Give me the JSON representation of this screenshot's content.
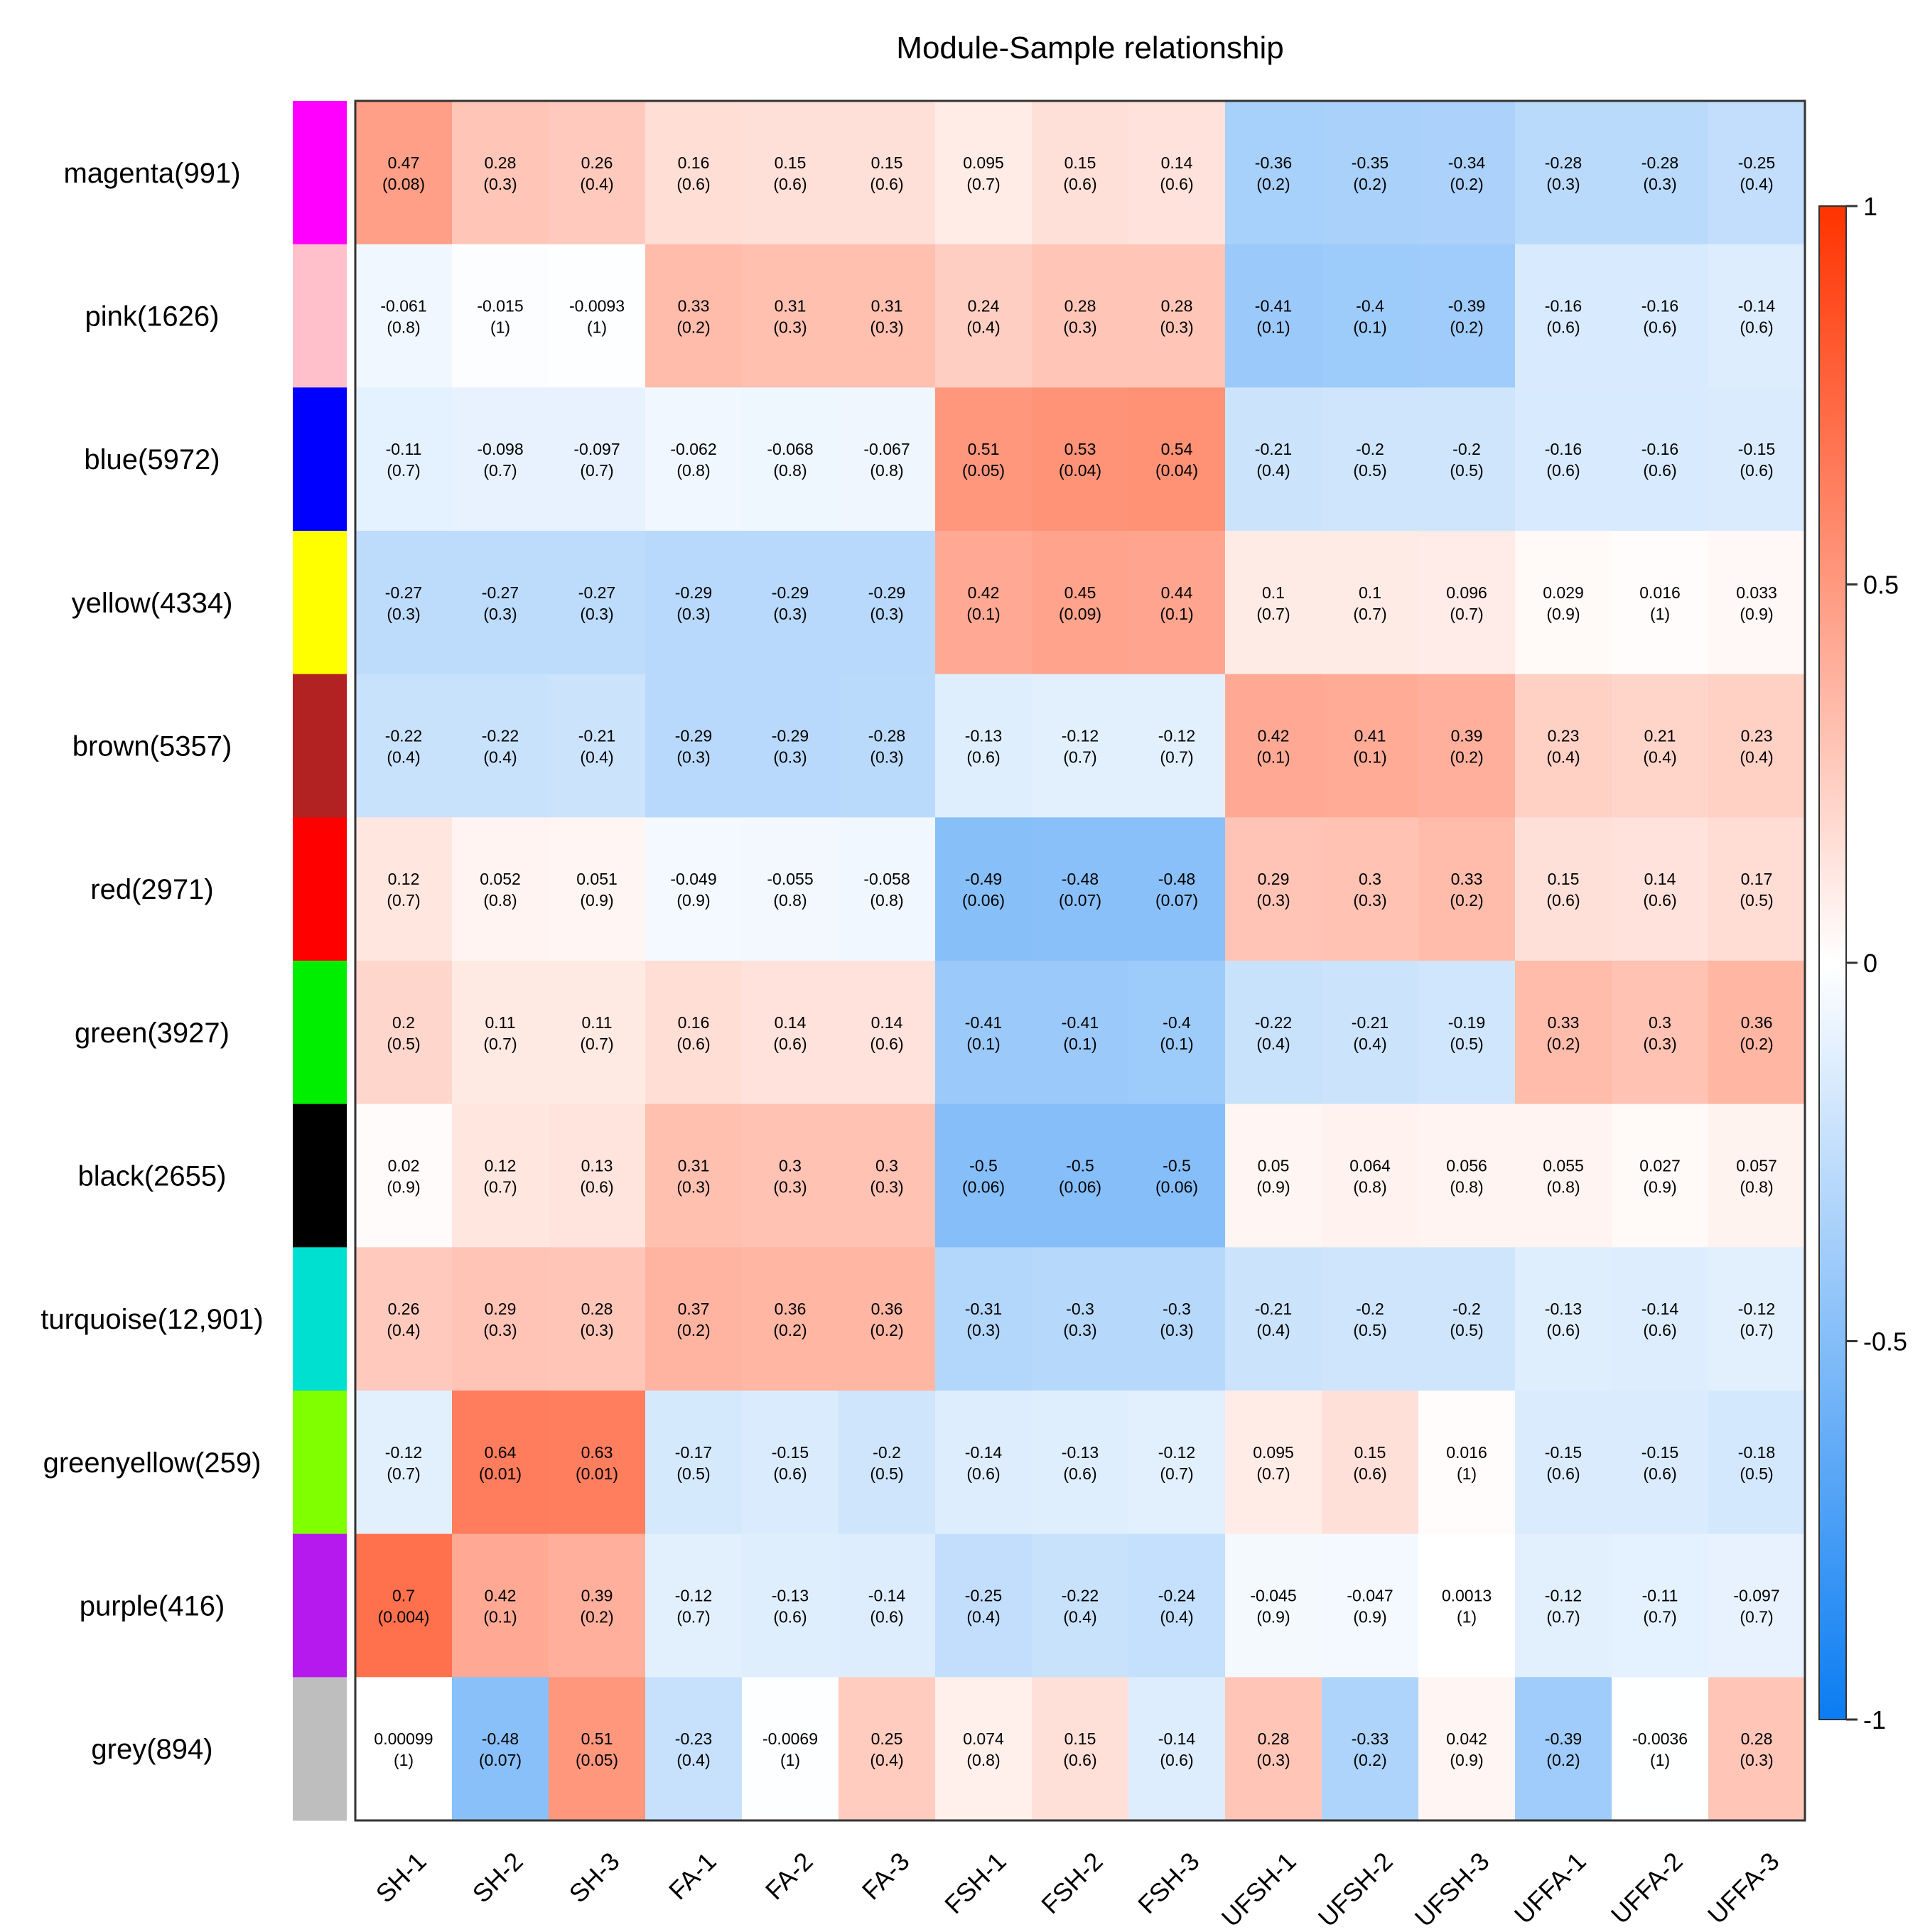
{
  "chart_data": {
    "type": "heatmap",
    "title": "Module-Sample relationship",
    "columns": [
      "SH-1",
      "SH-2",
      "SH-3",
      "FA-1",
      "FA-2",
      "FA-3",
      "FSH-1",
      "FSH-2",
      "FSH-3",
      "UFSH-1",
      "UFSH-2",
      "UFSH-3",
      "UFFA-1",
      "UFFA-2",
      "UFFA-3"
    ],
    "rows": [
      {
        "label": "magenta(991)",
        "color": "#FF00FF",
        "values": [
          "0.47",
          "0.28",
          "0.26",
          "0.16",
          "0.15",
          "0.15",
          "0.095",
          "0.15",
          "0.14",
          "-0.36",
          "-0.35",
          "-0.34",
          "-0.28",
          "-0.28",
          "-0.25"
        ],
        "pvalues": [
          "(0.08)",
          "(0.3)",
          "(0.4)",
          "(0.6)",
          "(0.6)",
          "(0.6)",
          "(0.7)",
          "(0.6)",
          "(0.6)",
          "(0.2)",
          "(0.2)",
          "(0.2)",
          "(0.3)",
          "(0.3)",
          "(0.4)"
        ]
      },
      {
        "label": "pink(1626)",
        "color": "#FFC0CB",
        "values": [
          "-0.061",
          "-0.015",
          "-0.0093",
          "0.33",
          "0.31",
          "0.31",
          "0.24",
          "0.28",
          "0.28",
          "-0.41",
          "-0.4",
          "-0.39",
          "-0.16",
          "-0.16",
          "-0.14"
        ],
        "pvalues": [
          "(0.8)",
          "(1)",
          "(1)",
          "(0.2)",
          "(0.3)",
          "(0.3)",
          "(0.4)",
          "(0.3)",
          "(0.3)",
          "(0.1)",
          "(0.1)",
          "(0.2)",
          "(0.6)",
          "(0.6)",
          "(0.6)"
        ]
      },
      {
        "label": "blue(5972)",
        "color": "#0000FF",
        "values": [
          "-0.11",
          "-0.098",
          "-0.097",
          "-0.062",
          "-0.068",
          "-0.067",
          "0.51",
          "0.53",
          "0.54",
          "-0.21",
          "-0.2",
          "-0.2",
          "-0.16",
          "-0.16",
          "-0.15"
        ],
        "pvalues": [
          "(0.7)",
          "(0.7)",
          "(0.7)",
          "(0.8)",
          "(0.8)",
          "(0.8)",
          "(0.05)",
          "(0.04)",
          "(0.04)",
          "(0.4)",
          "(0.5)",
          "(0.5)",
          "(0.6)",
          "(0.6)",
          "(0.6)"
        ]
      },
      {
        "label": "yellow(4334)",
        "color": "#FFFF00",
        "values": [
          "-0.27",
          "-0.27",
          "-0.27",
          "-0.29",
          "-0.29",
          "-0.29",
          "0.42",
          "0.45",
          "0.44",
          "0.1",
          "0.1",
          "0.096",
          "0.029",
          "0.016",
          "0.033"
        ],
        "pvalues": [
          "(0.3)",
          "(0.3)",
          "(0.3)",
          "(0.3)",
          "(0.3)",
          "(0.3)",
          "(0.1)",
          "(0.09)",
          "(0.1)",
          "(0.7)",
          "(0.7)",
          "(0.7)",
          "(0.9)",
          "(1)",
          "(0.9)"
        ]
      },
      {
        "label": "brown(5357)",
        "color": "#B22222",
        "values": [
          "-0.22",
          "-0.22",
          "-0.21",
          "-0.29",
          "-0.29",
          "-0.28",
          "-0.13",
          "-0.12",
          "-0.12",
          "0.42",
          "0.41",
          "0.39",
          "0.23",
          "0.21",
          "0.23"
        ],
        "pvalues": [
          "(0.4)",
          "(0.4)",
          "(0.4)",
          "(0.3)",
          "(0.3)",
          "(0.3)",
          "(0.6)",
          "(0.7)",
          "(0.7)",
          "(0.1)",
          "(0.1)",
          "(0.2)",
          "(0.4)",
          "(0.4)",
          "(0.4)"
        ]
      },
      {
        "label": "red(2971)",
        "color": "#FF0000",
        "values": [
          "0.12",
          "0.052",
          "0.051",
          "-0.049",
          "-0.055",
          "-0.058",
          "-0.49",
          "-0.48",
          "-0.48",
          "0.29",
          "0.3",
          "0.33",
          "0.15",
          "0.14",
          "0.17"
        ],
        "pvalues": [
          "(0.7)",
          "(0.8)",
          "(0.9)",
          "(0.9)",
          "(0.8)",
          "(0.8)",
          "(0.06)",
          "(0.07)",
          "(0.07)",
          "(0.3)",
          "(0.3)",
          "(0.2)",
          "(0.6)",
          "(0.6)",
          "(0.5)"
        ]
      },
      {
        "label": "green(3927)",
        "color": "#00EE00",
        "values": [
          "0.2",
          "0.11",
          "0.11",
          "0.16",
          "0.14",
          "0.14",
          "-0.41",
          "-0.41",
          "-0.4",
          "-0.22",
          "-0.21",
          "-0.19",
          "0.33",
          "0.3",
          "0.36"
        ],
        "pvalues": [
          "(0.5)",
          "(0.7)",
          "(0.7)",
          "(0.6)",
          "(0.6)",
          "(0.6)",
          "(0.1)",
          "(0.1)",
          "(0.1)",
          "(0.4)",
          "(0.4)",
          "(0.5)",
          "(0.2)",
          "(0.3)",
          "(0.2)"
        ]
      },
      {
        "label": "black(2655)",
        "color": "#000000",
        "values": [
          "0.02",
          "0.12",
          "0.13",
          "0.31",
          "0.3",
          "0.3",
          "-0.5",
          "-0.5",
          "-0.5",
          "0.05",
          "0.064",
          "0.056",
          "0.055",
          "0.027",
          "0.057"
        ],
        "pvalues": [
          "(0.9)",
          "(0.7)",
          "(0.6)",
          "(0.3)",
          "(0.3)",
          "(0.3)",
          "(0.06)",
          "(0.06)",
          "(0.06)",
          "(0.9)",
          "(0.8)",
          "(0.8)",
          "(0.8)",
          "(0.9)",
          "(0.8)"
        ]
      },
      {
        "label": "turquoise(12,901)",
        "color": "#00E0D0",
        "values": [
          "0.26",
          "0.29",
          "0.28",
          "0.37",
          "0.36",
          "0.36",
          "-0.31",
          "-0.3",
          "-0.3",
          "-0.21",
          "-0.2",
          "-0.2",
          "-0.13",
          "-0.14",
          "-0.12"
        ],
        "pvalues": [
          "(0.4)",
          "(0.3)",
          "(0.3)",
          "(0.2)",
          "(0.2)",
          "(0.2)",
          "(0.3)",
          "(0.3)",
          "(0.3)",
          "(0.4)",
          "(0.5)",
          "(0.5)",
          "(0.6)",
          "(0.6)",
          "(0.7)"
        ]
      },
      {
        "label": "greenyellow(259)",
        "color": "#7FFF00",
        "values": [
          "-0.12",
          "0.64",
          "0.63",
          "-0.17",
          "-0.15",
          "-0.2",
          "-0.14",
          "-0.13",
          "-0.12",
          "0.095",
          "0.15",
          "0.016",
          "-0.15",
          "-0.15",
          "-0.18"
        ],
        "pvalues": [
          "(0.7)",
          "(0.01)",
          "(0.01)",
          "(0.5)",
          "(0.6)",
          "(0.5)",
          "(0.6)",
          "(0.6)",
          "(0.7)",
          "(0.7)",
          "(0.6)",
          "(1)",
          "(0.6)",
          "(0.6)",
          "(0.5)"
        ]
      },
      {
        "label": "purple(416)",
        "color": "#B519EE",
        "values": [
          "0.7",
          "0.42",
          "0.39",
          "-0.12",
          "-0.13",
          "-0.14",
          "-0.25",
          "-0.22",
          "-0.24",
          "-0.045",
          "-0.047",
          "0.0013",
          "-0.12",
          "-0.11",
          "-0.097"
        ],
        "pvalues": [
          "(0.004)",
          "(0.1)",
          "(0.2)",
          "(0.7)",
          "(0.6)",
          "(0.6)",
          "(0.4)",
          "(0.4)",
          "(0.4)",
          "(0.9)",
          "(0.9)",
          "(1)",
          "(0.7)",
          "(0.7)",
          "(0.7)"
        ]
      },
      {
        "label": "grey(894)",
        "color": "#BEBEBE",
        "values": [
          "0.00099",
          "-0.48",
          "0.51",
          "-0.23",
          "-0.0069",
          "0.25",
          "0.074",
          "0.15",
          "-0.14",
          "0.28",
          "-0.33",
          "0.042",
          "-0.39",
          "-0.0036",
          "0.28"
        ],
        "pvalues": [
          "(1)",
          "(0.07)",
          "(0.05)",
          "(0.4)",
          "(1)",
          "(0.4)",
          "(0.8)",
          "(0.6)",
          "(0.6)",
          "(0.3)",
          "(0.2)",
          "(0.9)",
          "(0.2)",
          "(1)",
          "(0.3)"
        ]
      }
    ],
    "colorbar": {
      "range": [
        -1,
        1
      ],
      "ticks": [
        "1",
        "0.5",
        "0",
        "-0.5",
        "-1"
      ],
      "colors": {
        "low": "#0A7CF2",
        "mid": "#FFFFFF",
        "high": "#FF3300"
      }
    }
  }
}
